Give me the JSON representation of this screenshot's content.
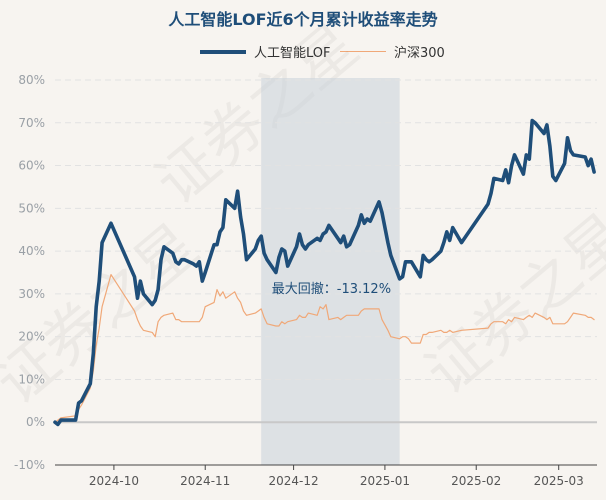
{
  "watermark_text": "证券之星",
  "chart_data": {
    "type": "line",
    "title": "人工智能LOF近6个月累计收益率走势",
    "xlabel": "",
    "ylabel": "",
    "y_unit": "%",
    "ylim": [
      -10,
      80
    ],
    "yticks": [
      -10,
      0,
      10,
      20,
      30,
      40,
      50,
      60,
      70,
      80
    ],
    "ytick_labels": [
      "-10%",
      "0%",
      "10%",
      "20%",
      "30%",
      "40%",
      "50%",
      "60%",
      "70%",
      "80%"
    ],
    "xlim": [
      "2024-09-11",
      "2025-03-14"
    ],
    "xticks": [
      "2024-10-01",
      "2024-11-01",
      "2024-12-01",
      "2025-01-01",
      "2025-02-01",
      "2025-03-01"
    ],
    "xtick_labels": [
      "2024-10",
      "2024-11",
      "2024-12",
      "2025-01",
      "2025-02",
      "2025-03"
    ],
    "legend_position": "top",
    "grid": "horizontal",
    "drawdown": {
      "label": "最大回撤：-13.12%",
      "start": "2024-11-20",
      "end": "2025-01-06"
    },
    "series": [
      {
        "name": "人工智能LOF",
        "color": "#1f4e79",
        "points": [
          [
            "2024-09-11",
            0
          ],
          [
            "2024-09-12",
            -0.5
          ],
          [
            "2024-09-13",
            0.5
          ],
          [
            "2024-09-18",
            0.5
          ],
          [
            "2024-09-19",
            4.5
          ],
          [
            "2024-09-20",
            5
          ],
          [
            "2024-09-23",
            9
          ],
          [
            "2024-09-24",
            16
          ],
          [
            "2024-09-25",
            27
          ],
          [
            "2024-09-26",
            33
          ],
          [
            "2024-09-27",
            42
          ],
          [
            "2024-09-30",
            46.5
          ],
          [
            "2024-10-08",
            34
          ],
          [
            "2024-10-09",
            29
          ],
          [
            "2024-10-10",
            33
          ],
          [
            "2024-10-11",
            30
          ],
          [
            "2024-10-14",
            27.5
          ],
          [
            "2024-10-15",
            28.5
          ],
          [
            "2024-10-16",
            31
          ],
          [
            "2024-10-17",
            38
          ],
          [
            "2024-10-18",
            41
          ],
          [
            "2024-10-21",
            39.5
          ],
          [
            "2024-10-22",
            37.5
          ],
          [
            "2024-10-23",
            37
          ],
          [
            "2024-10-24",
            38
          ],
          [
            "2024-10-25",
            38
          ],
          [
            "2024-10-28",
            37
          ],
          [
            "2024-10-29",
            36.5
          ],
          [
            "2024-10-30",
            37.5
          ],
          [
            "2024-10-31",
            33
          ],
          [
            "2024-11-01",
            35
          ],
          [
            "2024-11-04",
            41.5
          ],
          [
            "2024-11-05",
            41.5
          ],
          [
            "2024-11-06",
            44.5
          ],
          [
            "2024-11-07",
            45.5
          ],
          [
            "2024-11-08",
            52
          ],
          [
            "2024-11-11",
            50
          ],
          [
            "2024-11-12",
            54
          ],
          [
            "2024-11-13",
            48
          ],
          [
            "2024-11-14",
            44
          ],
          [
            "2024-11-15",
            38
          ],
          [
            "2024-11-18",
            40.5
          ],
          [
            "2024-11-19",
            42.5
          ],
          [
            "2024-11-20",
            43.5
          ],
          [
            "2024-11-21",
            39.5
          ],
          [
            "2024-11-22",
            38
          ],
          [
            "2024-11-25",
            35
          ],
          [
            "2024-11-26",
            38.5
          ],
          [
            "2024-11-27",
            40.5
          ],
          [
            "2024-11-28",
            40
          ],
          [
            "2024-11-29",
            36.5
          ],
          [
            "2024-12-02",
            41
          ],
          [
            "2024-12-03",
            44
          ],
          [
            "2024-12-04",
            41.5
          ],
          [
            "2024-12-05",
            40.5
          ],
          [
            "2024-12-06",
            41.5
          ],
          [
            "2024-12-09",
            43
          ],
          [
            "2024-12-10",
            42.5
          ],
          [
            "2024-12-11",
            44
          ],
          [
            "2024-12-12",
            44.5
          ],
          [
            "2024-12-13",
            46
          ],
          [
            "2024-12-16",
            43
          ],
          [
            "2024-12-17",
            42
          ],
          [
            "2024-12-18",
            43.5
          ],
          [
            "2024-12-19",
            41
          ],
          [
            "2024-12-20",
            41.5
          ],
          [
            "2024-12-23",
            46
          ],
          [
            "2024-12-24",
            48.5
          ],
          [
            "2024-12-25",
            46.5
          ],
          [
            "2024-12-26",
            47.5
          ],
          [
            "2024-12-27",
            47
          ],
          [
            "2024-12-30",
            51.5
          ],
          [
            "2024-12-31",
            49
          ],
          [
            "2025-01-02",
            42
          ],
          [
            "2025-01-03",
            39
          ],
          [
            "2025-01-06",
            33.5
          ],
          [
            "2025-01-07",
            34
          ],
          [
            "2025-01-08",
            37.5
          ],
          [
            "2025-01-09",
            37.5
          ],
          [
            "2025-01-10",
            37.5
          ],
          [
            "2025-01-13",
            34
          ],
          [
            "2025-01-14",
            39
          ],
          [
            "2025-01-15",
            38
          ],
          [
            "2025-01-16",
            37.5
          ],
          [
            "2025-01-17",
            38
          ],
          [
            "2025-01-20",
            40
          ],
          [
            "2025-01-21",
            42
          ],
          [
            "2025-01-22",
            44.5
          ],
          [
            "2025-01-23",
            42.5
          ],
          [
            "2025-01-24",
            45.5
          ],
          [
            "2025-01-27",
            42
          ],
          [
            "2025-02-05",
            51
          ],
          [
            "2025-02-06",
            53.5
          ],
          [
            "2025-02-07",
            57
          ],
          [
            "2025-02-10",
            56.5
          ],
          [
            "2025-02-11",
            59
          ],
          [
            "2025-02-12",
            56
          ],
          [
            "2025-02-13",
            60
          ],
          [
            "2025-02-14",
            62.5
          ],
          [
            "2025-02-17",
            58
          ],
          [
            "2025-02-18",
            62.5
          ],
          [
            "2025-02-19",
            61.5
          ],
          [
            "2025-02-20",
            70.5
          ],
          [
            "2025-02-21",
            70
          ],
          [
            "2025-02-24",
            67.5
          ],
          [
            "2025-02-25",
            69.5
          ],
          [
            "2025-02-26",
            64.5
          ],
          [
            "2025-02-27",
            57.5
          ],
          [
            "2025-02-28",
            56.5
          ],
          [
            "2025-03-03",
            60.5
          ],
          [
            "2025-03-04",
            66.5
          ],
          [
            "2025-03-05",
            63.5
          ],
          [
            "2025-03-06",
            62.5
          ],
          [
            "2025-03-10",
            62
          ],
          [
            "2025-03-11",
            60
          ],
          [
            "2025-03-12",
            61.5
          ],
          [
            "2025-03-13",
            58.5
          ]
        ]
      },
      {
        "name": "沪深300",
        "color": "#f0a878",
        "points": [
          [
            "2024-09-11",
            0
          ],
          [
            "2024-09-12",
            0.5
          ],
          [
            "2024-09-13",
            1
          ],
          [
            "2024-09-18",
            1.5
          ],
          [
            "2024-09-19",
            3
          ],
          [
            "2024-09-20",
            4
          ],
          [
            "2024-09-23",
            8
          ],
          [
            "2024-09-24",
            12
          ],
          [
            "2024-09-25",
            18
          ],
          [
            "2024-09-26",
            22
          ],
          [
            "2024-09-27",
            27
          ],
          [
            "2024-09-30",
            34.5
          ],
          [
            "2024-10-08",
            26
          ],
          [
            "2024-10-09",
            24
          ],
          [
            "2024-10-10",
            22.5
          ],
          [
            "2024-10-11",
            21.5
          ],
          [
            "2024-10-14",
            21
          ],
          [
            "2024-10-15",
            20
          ],
          [
            "2024-10-16",
            23.5
          ],
          [
            "2024-10-17",
            24.5
          ],
          [
            "2024-10-18",
            25
          ],
          [
            "2024-10-21",
            25.5
          ],
          [
            "2024-10-22",
            24
          ],
          [
            "2024-10-23",
            24
          ],
          [
            "2024-10-24",
            23.5
          ],
          [
            "2024-10-25",
            23.5
          ],
          [
            "2024-10-28",
            23.5
          ],
          [
            "2024-10-29",
            23.5
          ],
          [
            "2024-10-30",
            23.5
          ],
          [
            "2024-10-31",
            24.5
          ],
          [
            "2024-11-01",
            27
          ],
          [
            "2024-11-04",
            28
          ],
          [
            "2024-11-05",
            31
          ],
          [
            "2024-11-06",
            29.5
          ],
          [
            "2024-11-07",
            30.5
          ],
          [
            "2024-11-08",
            29
          ],
          [
            "2024-11-11",
            30.5
          ],
          [
            "2024-11-12",
            29
          ],
          [
            "2024-11-13",
            28
          ],
          [
            "2024-11-14",
            26
          ],
          [
            "2024-11-15",
            25
          ],
          [
            "2024-11-18",
            25.5
          ],
          [
            "2024-11-19",
            26
          ],
          [
            "2024-11-20",
            26.5
          ],
          [
            "2024-11-21",
            24.5
          ],
          [
            "2024-11-22",
            23
          ],
          [
            "2024-11-25",
            22.5
          ],
          [
            "2024-11-26",
            22.5
          ],
          [
            "2024-11-27",
            23.5
          ],
          [
            "2024-11-28",
            23
          ],
          [
            "2024-11-29",
            23.5
          ],
          [
            "2024-12-02",
            24
          ],
          [
            "2024-12-03",
            25
          ],
          [
            "2024-12-04",
            24.5
          ],
          [
            "2024-12-05",
            24.5
          ],
          [
            "2024-12-06",
            25.5
          ],
          [
            "2024-12-09",
            25
          ],
          [
            "2024-12-10",
            27
          ],
          [
            "2024-12-11",
            26.5
          ],
          [
            "2024-12-12",
            27.5
          ],
          [
            "2024-12-13",
            24
          ],
          [
            "2024-12-16",
            24.5
          ],
          [
            "2024-12-17",
            24
          ],
          [
            "2024-12-18",
            24.5
          ],
          [
            "2024-12-19",
            25
          ],
          [
            "2024-12-20",
            25
          ],
          [
            "2024-12-23",
            25
          ],
          [
            "2024-12-24",
            26
          ],
          [
            "2024-12-25",
            26.5
          ],
          [
            "2024-12-26",
            26.5
          ],
          [
            "2024-12-27",
            26.5
          ],
          [
            "2024-12-30",
            26.5
          ],
          [
            "2024-12-31",
            24
          ],
          [
            "2025-01-02",
            21.5
          ],
          [
            "2025-01-03",
            20
          ],
          [
            "2025-01-06",
            19.5
          ],
          [
            "2025-01-07",
            20
          ],
          [
            "2025-01-08",
            20
          ],
          [
            "2025-01-09",
            19.5
          ],
          [
            "2025-01-10",
            18.5
          ],
          [
            "2025-01-13",
            18.5
          ],
          [
            "2025-01-14",
            20.5
          ],
          [
            "2025-01-15",
            20.5
          ],
          [
            "2025-01-16",
            21
          ],
          [
            "2025-01-17",
            21
          ],
          [
            "2025-01-20",
            21.5
          ],
          [
            "2025-01-21",
            21
          ],
          [
            "2025-01-22",
            21
          ],
          [
            "2025-01-23",
            21.5
          ],
          [
            "2025-01-24",
            21
          ],
          [
            "2025-01-27",
            21.5
          ],
          [
            "2025-02-05",
            22
          ],
          [
            "2025-02-06",
            23
          ],
          [
            "2025-02-07",
            23.5
          ],
          [
            "2025-02-10",
            23.5
          ],
          [
            "2025-02-11",
            23
          ],
          [
            "2025-02-12",
            24
          ],
          [
            "2025-02-13",
            23.5
          ],
          [
            "2025-02-14",
            24.5
          ],
          [
            "2025-02-17",
            24
          ],
          [
            "2025-02-18",
            24.5
          ],
          [
            "2025-02-19",
            25
          ],
          [
            "2025-02-20",
            24.5
          ],
          [
            "2025-02-21",
            25.5
          ],
          [
            "2025-02-24",
            24.5
          ],
          [
            "2025-02-25",
            24
          ],
          [
            "2025-02-26",
            24.5
          ],
          [
            "2025-02-27",
            23
          ],
          [
            "2025-02-28",
            23
          ],
          [
            "2025-03-03",
            23
          ],
          [
            "2025-03-04",
            23.5
          ],
          [
            "2025-03-05",
            24.5
          ],
          [
            "2025-03-06",
            25.5
          ],
          [
            "2025-03-10",
            25
          ],
          [
            "2025-03-11",
            24.5
          ],
          [
            "2025-03-12",
            24.5
          ],
          [
            "2025-03-13",
            24
          ]
        ]
      }
    ]
  }
}
